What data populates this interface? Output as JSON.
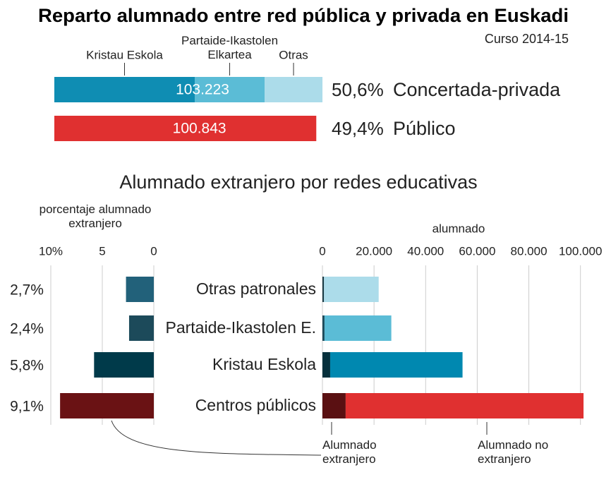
{
  "title": "Reparto alumnado entre red pública y privada en Euskadi",
  "subtitle": "Curso 2014-15",
  "section_title": "Alumnado extranjero por redes educativas",
  "chart_data": [
    {
      "type": "stacked-bar",
      "xlim": [
        0,
        110000
      ],
      "rows": [
        {
          "name": "Concertada-privada",
          "share": 50.6,
          "share_label": "50,6%",
          "total": 103223,
          "total_label": "103.223",
          "segments": [
            {
              "name": "Kristau Eskola",
              "color": "#0f8db3",
              "value": 54056
            },
            {
              "name": "Partaide-Ikastolen Elkartea",
              "color": "#5bbcd6",
              "value": 26893
            },
            {
              "name": "Otras",
              "color": "#acdcea",
              "value": 22274
            }
          ]
        },
        {
          "name": "Público",
          "share": 49.4,
          "share_label": "49,4%",
          "total": 100843,
          "total_label": "100.843",
          "segments": [
            {
              "color": "#e03030",
              "value": 100843
            }
          ]
        }
      ]
    },
    {
      "type": "hbar",
      "axis_label": "porcentaje alumnado extranjero",
      "xlim": [
        10,
        0
      ],
      "xticks": [
        {
          "value": 10,
          "label": "10%"
        },
        5,
        0
      ],
      "categories": [
        "Otras patronales",
        "Partaide-Ikastolen E.",
        "Kristau Eskola",
        "Centros públicos"
      ],
      "values": [
        2.7,
        2.4,
        5.8,
        9.1
      ],
      "value_labels": [
        "2,7%",
        "2,4%",
        "5,8%",
        "9,1%"
      ],
      "colors": [
        "#22617a",
        "#1c4a5a",
        "#003a4a",
        "#6a1214"
      ]
    },
    {
      "type": "stacked-hbar",
      "axis_label": "alumnado",
      "xlim": [
        0,
        102000
      ],
      "xticks": [
        0,
        {
          "value": 20000,
          "label": "20.000"
        },
        {
          "value": 40000,
          "label": "40.000"
        },
        {
          "value": 60000,
          "label": "60.000"
        },
        {
          "value": 80000,
          "label": "80.000"
        },
        {
          "value": 100000,
          "label": "100.000"
        }
      ],
      "series": [
        {
          "name": "Alumnado extranjero",
          "colors": [
            "#1a3a44",
            "#1c4a5a",
            "#06303c",
            "#5a1012"
          ],
          "values": [
            600,
            800,
            3000,
            9000
          ]
        },
        {
          "name": "Alumnado no extranjero",
          "colors": [
            "#acdcea",
            "#5bbcd6",
            "#0088b0",
            "#e03030"
          ],
          "values": [
            21200,
            25900,
            51300,
            92200
          ]
        }
      ]
    }
  ]
}
